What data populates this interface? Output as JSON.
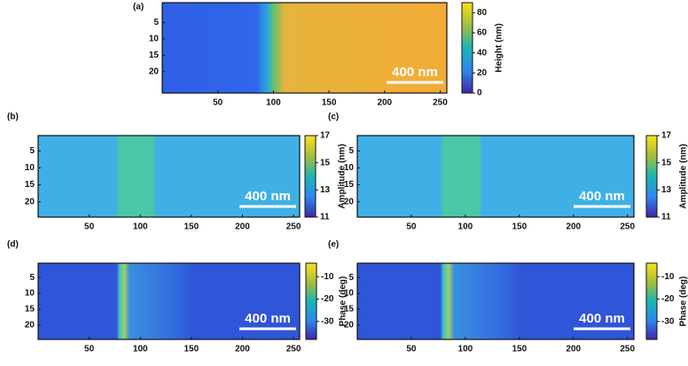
{
  "chart_data": [
    {
      "type": "heatmap",
      "panel": "(a)",
      "xlim": [
        0,
        256
      ],
      "ylim": [
        -1,
        26.5
      ],
      "xticks": [
        50,
        100,
        150,
        200,
        250
      ],
      "yticks": [
        5,
        10,
        15,
        20
      ],
      "colorbar": {
        "label": "Height (nm)",
        "lim": [
          0,
          90
        ],
        "ticks": [
          0,
          20,
          40,
          60,
          80
        ]
      },
      "scalebar": "400 nm"
    },
    {
      "type": "heatmap",
      "panel": "(b)",
      "xlim": [
        0,
        256
      ],
      "ylim": [
        0.5,
        24.5
      ],
      "xticks": [
        50,
        100,
        150,
        200,
        250
      ],
      "yticks": [
        5,
        10,
        15,
        20
      ],
      "colorbar": {
        "label": "Amplitude (nm)",
        "lim": [
          11,
          17
        ],
        "ticks": [
          11,
          13,
          15,
          17
        ]
      },
      "scalebar": "400 nm"
    },
    {
      "type": "heatmap",
      "panel": "(c)",
      "xlim": [
        0,
        256
      ],
      "ylim": [
        0.5,
        24.5
      ],
      "xticks": [
        50,
        100,
        150,
        200,
        250
      ],
      "yticks": [
        5,
        10,
        15,
        20
      ],
      "colorbar": {
        "label": "Amplitude (nm)",
        "lim": [
          11,
          17
        ],
        "ticks": [
          11,
          13,
          15,
          17
        ]
      },
      "scalebar": "400 nm"
    },
    {
      "type": "heatmap",
      "panel": "(d)",
      "xlim": [
        0,
        256
      ],
      "ylim": [
        0.5,
        24.5
      ],
      "xticks": [
        50,
        100,
        150,
        200,
        250
      ],
      "yticks": [
        5,
        10,
        15,
        20
      ],
      "colorbar": {
        "label": "Phase (deg)",
        "lim": [
          -38,
          -4
        ],
        "ticks": [
          -30,
          -20,
          -10
        ]
      },
      "scalebar": "400 nm"
    },
    {
      "type": "heatmap",
      "panel": "(e)",
      "xlim": [
        0,
        256
      ],
      "ylim": [
        0.5,
        24.5
      ],
      "xticks": [
        50,
        100,
        150,
        200,
        250
      ],
      "yticks": [
        5,
        10,
        15,
        20
      ],
      "colorbar": {
        "label": "Phase (deg)",
        "lim": [
          -38,
          -4
        ],
        "ticks": [
          -30,
          -20,
          -10
        ]
      },
      "scalebar": "400 nm"
    }
  ]
}
